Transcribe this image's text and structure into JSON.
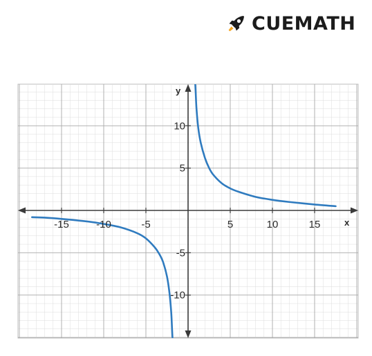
{
  "brand": {
    "name": "CUEMATH",
    "logo_icon": "rocket-icon",
    "color": "#1c1c1c"
  },
  "chart_data": {
    "type": "line",
    "title": "",
    "xlabel": "x",
    "ylabel": "y",
    "xlim": [
      -20,
      20
    ],
    "ylim": [
      -15,
      15
    ],
    "grid": true,
    "x_ticks": [
      -15,
      -10,
      -5,
      5,
      10,
      15
    ],
    "x_tick_labels": [
      "-15",
      "-10",
      "-5",
      "5",
      "10",
      "15"
    ],
    "y_ticks": [
      10,
      5,
      -5,
      -10
    ],
    "y_tick_labels": [
      "10",
      "5",
      "-5",
      "-10"
    ],
    "series": [
      {
        "name": "right branch",
        "color": "#2f7bbf",
        "x": [
          0.85,
          0.9,
          1,
          1.2,
          1.5,
          2,
          2.5,
          3,
          4,
          5,
          6,
          8,
          10,
          12,
          15,
          17.5
        ],
        "y": [
          15,
          14,
          12,
          9.8,
          8,
          6.2,
          5,
          4.2,
          3.2,
          2.6,
          2.2,
          1.6,
          1.25,
          1.0,
          0.7,
          0.5
        ]
      },
      {
        "name": "left branch",
        "color": "#2f7bbf",
        "x": [
          -18.5,
          -17,
          -15,
          -12,
          -10,
          -8,
          -6,
          -5,
          -4,
          -3.5,
          -3,
          -2.5,
          -2.2,
          -2,
          -1.9,
          -1.85
        ],
        "y": [
          -0.8,
          -0.85,
          -1.0,
          -1.3,
          -1.6,
          -2.0,
          -2.7,
          -3.3,
          -4.3,
          -5.0,
          -6.0,
          -7.8,
          -9.8,
          -12,
          -14,
          -15
        ]
      }
    ]
  }
}
